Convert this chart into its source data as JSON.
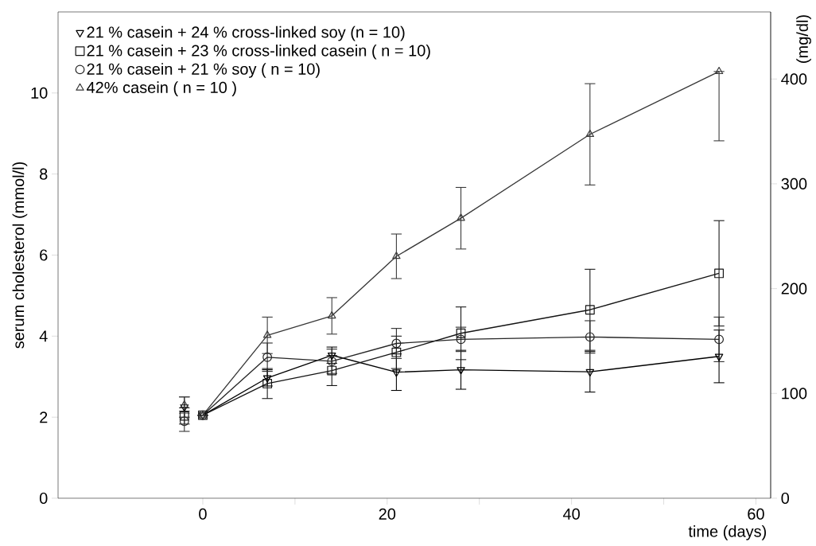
{
  "chart_data": {
    "type": "line",
    "xlabel": "time (days)",
    "ylabel": "serum cholesterol (mmol/l)",
    "y2label": "(mg/dl)",
    "x": [
      -2,
      0,
      7,
      14,
      21,
      28,
      42,
      56
    ],
    "xlim": [
      -15.7,
      61.6
    ],
    "xticks": [
      0,
      {
        "value": 10,
        "label": null
      },
      20,
      {
        "value": 30,
        "label": null
      },
      40,
      {
        "value": 50,
        "label": null
      },
      60
    ],
    "ylim": [
      0,
      12
    ],
    "yticks": [
      0,
      2,
      4,
      6,
      8,
      10
    ],
    "y2lim": [
      0,
      464
    ],
    "y2ticks": [
      0,
      100,
      200,
      300,
      400
    ],
    "legend": "top left",
    "series": [
      {
        "name": "21 % casein + 24 % cross-linked soy (n = 10)",
        "color": "#000000",
        "marker": "triangle_down",
        "values": [
          null,
          2.05,
          2.97,
          3.53,
          3.11,
          3.17,
          3.12,
          3.5
        ],
        "errors": [
          null,
          null,
          0.2,
          0.2,
          0.45,
          0.48,
          0.5,
          0.65
        ]
      },
      {
        "name": "21 % casein + 23 % cross-linked casein ( n = 10)",
        "color": "#141414",
        "marker": "square",
        "values": [
          null,
          2.05,
          2.83,
          3.15,
          3.6,
          4.07,
          4.65,
          5.55
        ],
        "errors": [
          null,
          null,
          0.37,
          0.37,
          0.4,
          0.65,
          1.0,
          1.3
        ]
      },
      {
        "name": "21 % casein + 21 % soy ( n = 10)",
        "color": "#262626",
        "marker": "circle",
        "values": [
          null,
          2.05,
          3.48,
          3.38,
          3.82,
          3.92,
          3.98,
          3.92
        ],
        "errors": [
          null,
          null,
          0.35,
          0.3,
          0.37,
          0.3,
          0.4,
          0.55
        ]
      },
      {
        "name": "42% casein ( n = 10 )",
        "color": "#383838",
        "marker": "triangle",
        "values": [
          null,
          2.05,
          4.02,
          4.5,
          5.97,
          6.91,
          8.98,
          10.53
        ],
        "errors": [
          null,
          null,
          0.45,
          0.45,
          0.55,
          0.76,
          1.25,
          [
            8.82,
            10.53
          ]
        ]
      },
      {
        "type": "scatter",
        "color": "#0a0a0a",
        "marker": "triangle_down",
        "values": [
          2.25,
          null,
          null,
          null,
          null,
          null,
          null,
          null
        ],
        "errors": [
          0.25,
          null,
          null,
          null,
          null,
          null,
          null,
          null
        ]
      },
      {
        "type": "scatter",
        "color": "#1e1e1e",
        "marker": "square",
        "values": [
          2.03,
          null,
          null,
          null,
          null,
          null,
          null,
          null
        ],
        "errors": [
          0.2,
          null,
          null,
          null,
          null,
          null,
          null,
          null
        ]
      },
      {
        "type": "scatter",
        "color": "#2f2f2f",
        "marker": "circle",
        "values": [
          1.9,
          null,
          null,
          null,
          null,
          null,
          null,
          null
        ],
        "errors": [
          0.25,
          null,
          null,
          null,
          null,
          null,
          null,
          null
        ]
      },
      {
        "type": "scatter",
        "color": "#404040",
        "marker": "triangle",
        "values": [
          2.3,
          null,
          null,
          null,
          null,
          null,
          null,
          null
        ],
        "errors": [
          0.2,
          null,
          null,
          null,
          null,
          null,
          null,
          null
        ]
      }
    ]
  }
}
